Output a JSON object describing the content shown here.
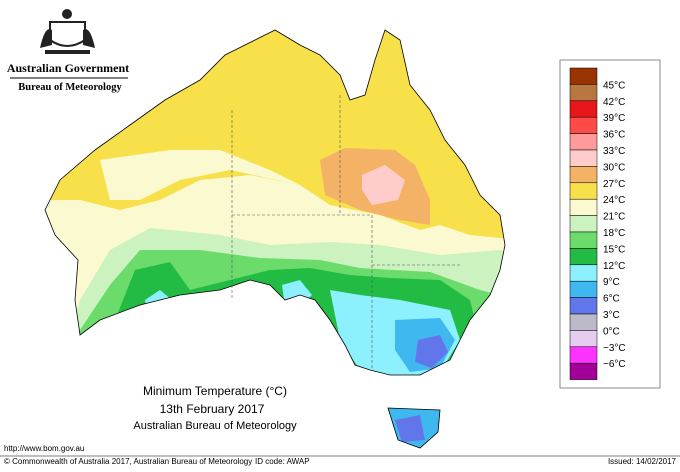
{
  "header": {
    "government": "Australian Government",
    "agency": "Bureau of Meteorology"
  },
  "legend": {
    "colors": [
      "#993300",
      "#b8773f",
      "#e8151b",
      "#ff4a4a",
      "#ff9a9a",
      "#ffcccc",
      "#f4b266",
      "#f7e04a",
      "#fbf9cf",
      "#cbf2bf",
      "#6bdc6b",
      "#22bb44",
      "#8df0ff",
      "#3fb8ef",
      "#6276ec",
      "#babac8",
      "#e4cdee",
      "#ff33ff",
      "#a3009a"
    ],
    "labels": [
      "45°C",
      "42°C",
      "39°C",
      "36°C",
      "33°C",
      "30°C",
      "27°C",
      "24°C",
      "21°C",
      "18°C",
      "15°C",
      "12°C",
      "9°C",
      "6°C",
      "3°C",
      "0°C",
      "−3°C",
      "−6°C"
    ]
  },
  "title": {
    "line1": "Minimum Temperature (°C)",
    "line2": "13th February 2017",
    "line3": "Australian Bureau of Meteorology"
  },
  "footer": {
    "url": "http://www.bom.gov.au",
    "copyright": "© Commonwealth of Australia 2017, Australian Bureau of Meteorology",
    "id_code": "ID code: AWAP",
    "issued": "Issued: 14/02/2017"
  }
}
